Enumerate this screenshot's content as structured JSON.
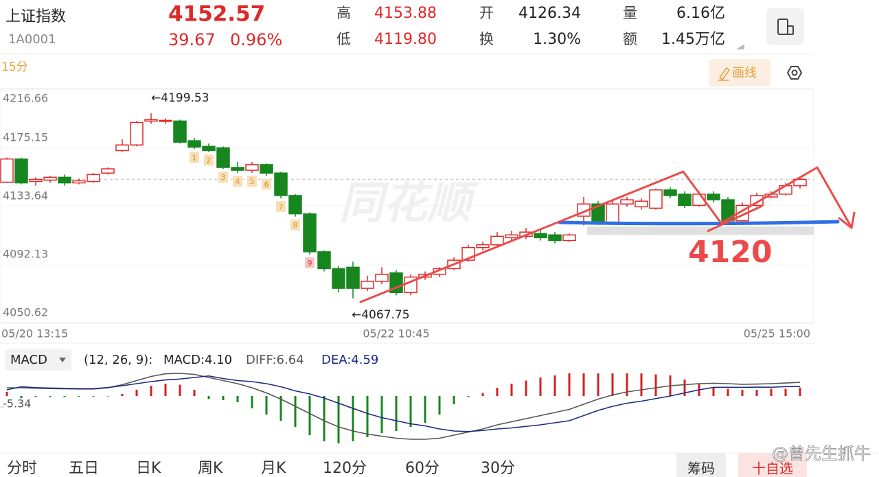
{
  "header": {
    "name": "上证指数",
    "code": "1A0001",
    "price": "4152.57",
    "change": "39.67",
    "change_pct": "0.96%",
    "stats": [
      {
        "label": "高",
        "value": "4153.88"
      },
      {
        "label": "低",
        "value": "4119.80"
      },
      {
        "label": "开",
        "value": "4126.34"
      },
      {
        "label": "换",
        "value": "1.30%"
      },
      {
        "label": "量",
        "value": "6.16亿"
      },
      {
        "label": "额",
        "value": "1.45万亿"
      }
    ]
  },
  "toolbar": {
    "period": "15分",
    "draw_button": "画线"
  },
  "chart_data": [
    {
      "type": "candlestick",
      "categories": [
        "05/20 13:15",
        null,
        null,
        null,
        null,
        null,
        null,
        null,
        null,
        null,
        null,
        null,
        null,
        null,
        null,
        null,
        null,
        null,
        null,
        null,
        null,
        null,
        null,
        null,
        null,
        null,
        null,
        "05/22 10:45",
        null,
        null,
        null,
        null,
        null,
        null,
        null,
        null,
        null,
        null,
        null,
        null,
        null,
        null,
        null,
        null,
        null,
        null,
        null,
        null,
        null,
        null,
        null,
        null,
        null,
        null,
        null,
        "05/25 15:00"
      ],
      "open": [
        4150.5,
        4167,
        4151,
        4152,
        4154,
        4150,
        4151,
        4157,
        4173,
        4177,
        4194,
        4194,
        4194,
        4180,
        4176,
        4175,
        4161,
        4159,
        4163,
        4157,
        4141,
        4128,
        4101,
        4089,
        4090,
        4075,
        4080,
        4086,
        4072,
        4083,
        4085,
        4089,
        4095,
        4104,
        4106,
        4111,
        4112,
        4114,
        4113,
        4109,
        4126.34,
        4135,
        4122,
        4135,
        4133,
        4132,
        4145,
        4142,
        4134,
        4142,
        4138,
        4123,
        4134,
        4140,
        4142,
        4148
      ],
      "high": [
        4168,
        4168,
        4154,
        4155,
        4156,
        4153,
        4157,
        4161,
        4181,
        4194,
        4199.53,
        4196,
        4195,
        4182,
        4178,
        4176,
        4165,
        4165,
        4164,
        4158,
        4142,
        4129,
        4102,
        4091,
        4094,
        4084,
        4090,
        4088,
        4085,
        4087,
        4090,
        4097,
        4106,
        4108,
        4115,
        4116,
        4118,
        4117,
        4115,
        4114,
        4140,
        4137,
        4137,
        4140,
        4139,
        4146,
        4147,
        4144,
        4144,
        4144,
        4140,
        4136,
        4143,
        4144,
        4150,
        4153.88
      ],
      "low": [
        4150,
        4149,
        4148,
        4150,
        4148,
        4149,
        4150,
        4156,
        4172,
        4176,
        4192,
        4192,
        4178,
        4174,
        4172,
        4160,
        4157,
        4157,
        4155,
        4139,
        4126,
        4099,
        4087,
        4072,
        4067.75,
        4073,
        4078,
        4070,
        4070,
        4081,
        4083,
        4088,
        4094,
        4102,
        4104,
        4109,
        4110,
        4109,
        4107,
        4108,
        4119.8,
        4120,
        4120,
        4133,
        4131,
        4131,
        4139,
        4132,
        4133,
        4136,
        4121,
        4121,
        4133,
        4139,
        4141,
        4146
      ],
      "close": [
        4167,
        4150,
        4152.5,
        4154,
        4150,
        4151.5,
        4156,
        4160,
        4177,
        4193,
        4195,
        4194.5,
        4179,
        4175.5,
        4173,
        4161,
        4159,
        4163,
        4157,
        4141,
        4128,
        4101,
        4089,
        4075,
        4075,
        4080,
        4085,
        4072,
        4083,
        4085,
        4089,
        4095,
        4104,
        4106,
        4112,
        4113,
        4115,
        4111,
        4109,
        4113,
        4135,
        4122,
        4135,
        4138,
        4137,
        4145,
        4141,
        4134,
        4142,
        4138,
        4123,
        4134,
        4141,
        4142,
        4148,
        4152.57
      ],
      "up_color": "#e02828",
      "down_color": "#17861f",
      "ylim": [
        4050.62,
        4216.66
      ],
      "yticks": [
        4050.62,
        4092.13,
        4133.64,
        4175.15,
        4216.66
      ],
      "last_price_line": true,
      "annotations": {
        "high_label": "←4199.53",
        "low_label": "←4067.75",
        "watermark": "同花顺",
        "td_counts": [
          1,
          2,
          3,
          4,
          5,
          6,
          7,
          8,
          9
        ],
        "hand_label": "4120"
      }
    },
    {
      "type": "macd",
      "indicator": "MACD",
      "params": "(12, 26, 9):",
      "up_color": "#d42020",
      "down_color": "#17861f",
      "ylim": [
        -24,
        14
      ],
      "yticks": [
        -5.34
      ],
      "series": [
        {
          "legend": "MACD:4.10",
          "color": "#222222",
          "values": [
            2,
            -1,
            -0.5,
            -0.5,
            -0.5,
            -0.3,
            -0.3,
            -0.2,
            1,
            3,
            5,
            6,
            5.5,
            3,
            -1.5,
            -2,
            -3,
            -6,
            -9,
            -12,
            -15,
            -19,
            -22,
            -23,
            -22,
            -20,
            -18,
            -17,
            -15,
            -13,
            -9,
            -4,
            -0.5,
            1.5,
            4,
            6,
            7.5,
            9,
            10,
            11,
            11,
            11,
            11,
            11,
            11,
            10.5,
            10,
            8,
            6,
            4,
            3.5,
            3,
            3,
            3.5,
            3.5,
            4.1
          ]
        },
        {
          "legend": "DIFF:6.64",
          "color": "#555555",
          "values": [
            4,
            4,
            3.8,
            3.6,
            3.5,
            3.4,
            3.4,
            4,
            5.5,
            7.5,
            9.5,
            10.8,
            11,
            10.5,
            9,
            7.5,
            6,
            4,
            1.5,
            -1.5,
            -5,
            -8.5,
            -12,
            -15,
            -17,
            -18.5,
            -19.5,
            -20.5,
            -21,
            -21,
            -20.5,
            -19,
            -17.5,
            -16,
            -14,
            -12.5,
            -11,
            -9.5,
            -8,
            -6.5,
            -4,
            -1.5,
            0.5,
            2,
            3,
            4,
            5,
            5.5,
            6,
            6.2,
            6,
            5.7,
            5.8,
            6,
            6.3,
            6.64
          ]
        },
        {
          "legend": "DEA:4.59",
          "color": "#1c2a80",
          "values": [
            3,
            4.5,
            4.05,
            3.85,
            3.75,
            3.55,
            3.55,
            4.1,
            5,
            6,
            7,
            7.8,
            8.25,
            9,
            9.75,
            8.5,
            7.5,
            7,
            6,
            4.5,
            2.5,
            1,
            -1,
            -3.5,
            -6,
            -8.5,
            -10.5,
            -12,
            -13.5,
            -14.5,
            -16,
            -17,
            -17.25,
            -16.75,
            -16,
            -15.5,
            -14.75,
            -14,
            -13,
            -12,
            -9.5,
            -7,
            -5,
            -3.5,
            -2.5,
            -1.25,
            0,
            1.5,
            3,
            4.2,
            4.25,
            4.2,
            4.3,
            4.25,
            4.55,
            4.59
          ]
        }
      ]
    }
  ],
  "tabs": [
    "分时",
    "五日",
    "日K",
    "周K",
    "月K",
    "120分",
    "60分",
    "30分"
  ],
  "buttons": [
    "筹码",
    "十自选"
  ],
  "watermark": "@曾先生抓牛"
}
